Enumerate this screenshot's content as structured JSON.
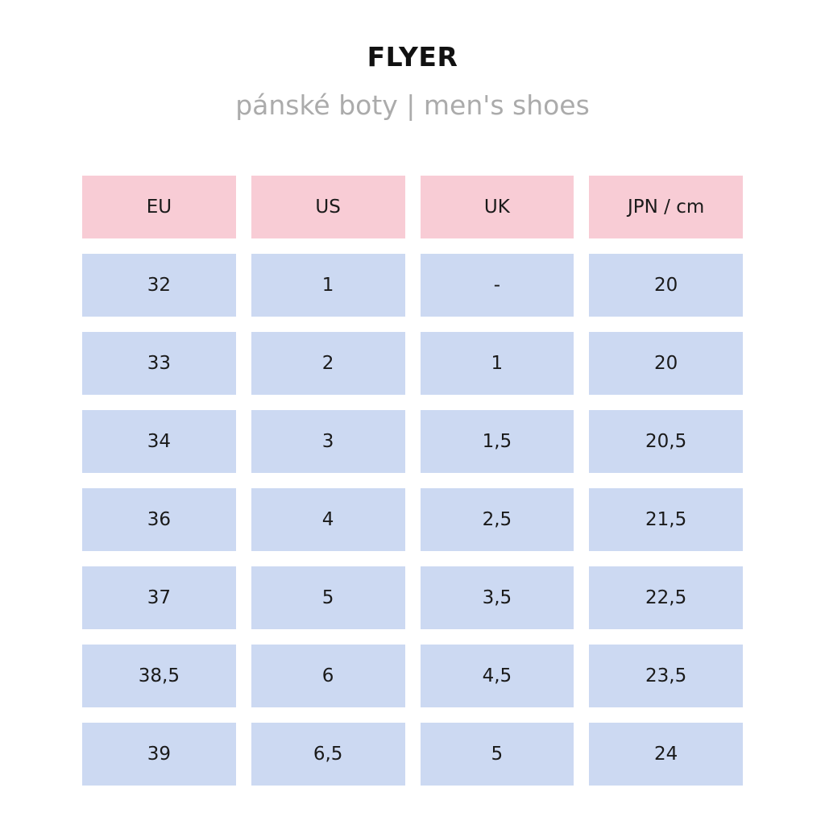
{
  "title": "FLYER",
  "subtitle": "pánské boty | men's shoes",
  "colors": {
    "header_bg": "#f8ccd5",
    "cell_bg": "#ccd9f2",
    "subtitle": "#ababab"
  },
  "table": {
    "headers": [
      "EU",
      "US",
      "UK",
      "JPN / cm"
    ],
    "rows": [
      [
        "32",
        "1",
        "-",
        "20"
      ],
      [
        "33",
        "2",
        "1",
        "20"
      ],
      [
        "34",
        "3",
        "1,5",
        "20,5"
      ],
      [
        "36",
        "4",
        "2,5",
        "21,5"
      ],
      [
        "37",
        "5",
        "3,5",
        "22,5"
      ],
      [
        "38,5",
        "6",
        "4,5",
        "23,5"
      ],
      [
        "39",
        "6,5",
        "5",
        "24"
      ]
    ]
  }
}
